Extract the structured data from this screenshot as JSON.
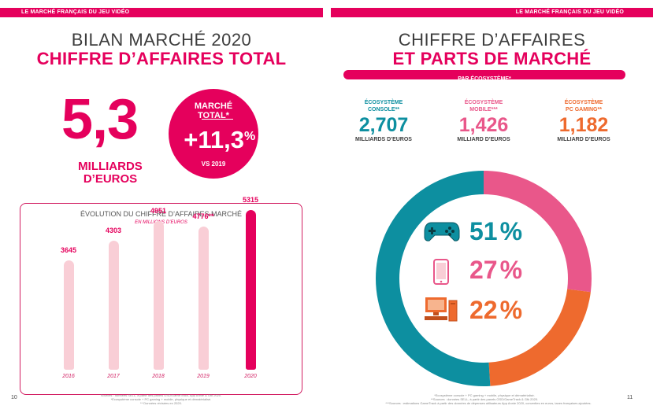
{
  "header": {
    "left": "LE MARCHÉ FRANÇAIS DU JEU VIDÉO",
    "right": "LE MARCHÉ FRANÇAIS DU JEU VIDÉO"
  },
  "left": {
    "title_line1": "BILAN MARCHÉ 2020",
    "title_line2": "CHIFFRE D’AFFAIRES TOTAL",
    "big_value": "5,3",
    "big_unit_line1": "MILLIARDS",
    "big_unit_line2": "D’EUROS",
    "circle": {
      "label_line1": "MARCHÉ",
      "label_line2": "TOTAL*",
      "value": "+11,3",
      "percent": "%",
      "vs": "VS 2019"
    },
    "chart_title": "ÉVOLUTION DU CHIFFRE D’AFFAIRES MARCHÉ",
    "chart_subtitle": "EN MILLIONS D’EUROS",
    "footnote_1": "Sources : données SELL, à partir des panels GSD/GameTrack, App Annie & Gfk 2020.",
    "footnote_2": "*Ecosystème console + PC gaming + mobile, physique et dématérialisé.",
    "footnote_3": "** Données révisées en 2020.",
    "page_number": "10"
  },
  "chart_data": {
    "type": "bar",
    "title": "ÉVOLUTION DU CHIFFRE D’AFFAIRES MARCHÉ",
    "subtitle": "EN MILLIONS D’EUROS",
    "categories": [
      "2016",
      "2017",
      "2018",
      "2019",
      "2020"
    ],
    "values": [
      3645,
      4303,
      4951,
      4776,
      5315
    ],
    "value_labels": [
      "3645",
      "4303",
      "4951",
      "4776**",
      "5315"
    ],
    "ylim": [
      0,
      5500
    ],
    "grid": false,
    "colors": {
      "past": "#f9ced6",
      "current": "#e5005c"
    }
  },
  "right": {
    "title_line1": "CHIFFRE D’AFFAIRES",
    "title_line2": "ET PARTS DE MARCHÉ",
    "band_label": "PAR ÉCOSYSTÈME*",
    "ecosystems": [
      {
        "label_line1": "ÉCOSYSTÈME",
        "label_line2": "CONSOLE**",
        "value": "2,707",
        "unit": "MILLIARDS D’EUROS",
        "color": "#0d8fa0"
      },
      {
        "label_line1": "ÉCOSYSTÈME",
        "label_line2": "MOBILE***",
        "value": "1,426",
        "unit": "MILLIARD D’EUROS",
        "color": "#e9578a"
      },
      {
        "label_line1": "ÉCOSYSTÈME",
        "label_line2": "PC GAMING**",
        "value": "1,182",
        "unit": "MILLIARD D’EUROS",
        "color": "#ee6a2e"
      }
    ],
    "shares": [
      {
        "icon": "gamepad-icon",
        "value": "51",
        "percent": "%",
        "share": 0.51,
        "color": "#0d8fa0"
      },
      {
        "icon": "smartphone-icon",
        "value": "27",
        "percent": "%",
        "share": 0.27,
        "color": "#e9578a"
      },
      {
        "icon": "pc-icon",
        "value": "22",
        "percent": "%",
        "share": 0.22,
        "color": "#ee6a2e"
      }
    ],
    "footnote_1": "*Ecosystème console + PC gaming + mobile, physique et dématérialisé.",
    "footnote_2": "**Sources : données SELL, à partir des panels GSD/GameTrack & Gfk 2020.",
    "footnote_3": "***Sources : estimations GameTrack à partir des données de dépenses utilisateurs App Annie 2020, converties en euros, taxes françaises ajoutées.",
    "page_number": "11"
  }
}
